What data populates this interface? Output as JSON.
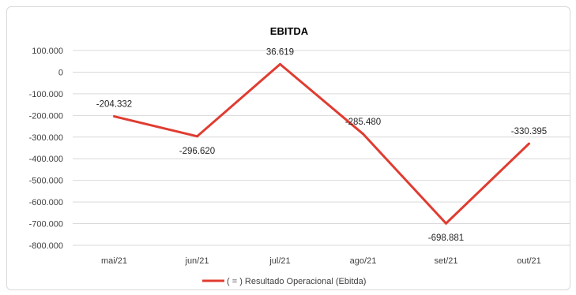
{
  "chart_data": {
    "type": "line",
    "title": "EBITDA",
    "xlabel": "",
    "ylabel": "",
    "categories": [
      "mai/21",
      "jun/21",
      "jul/21",
      "ago/21",
      "set/21",
      "out/21"
    ],
    "series": [
      {
        "name": "( = ) Resultado Operacional (Ebitda)",
        "values": [
          -204332,
          -296620,
          36619,
          -285480,
          -698881,
          -330395
        ],
        "labels": [
          "-204.332",
          "-296.620",
          "36.619",
          "-285.480",
          "-698.881",
          "-330.395"
        ],
        "color": "#e03c31"
      }
    ],
    "ylim": [
      -800000,
      100000
    ],
    "yticks": [
      100000,
      0,
      -100000,
      -200000,
      -300000,
      -400000,
      -500000,
      -600000,
      -700000,
      -800000
    ],
    "ytick_labels": [
      "100.000",
      "0",
      "-100.000",
      "-200.000",
      "-300.000",
      "-400.000",
      "-500.000",
      "-600.000",
      "-700.000",
      "-800.000"
    ],
    "grid": true,
    "legend": "bottom"
  }
}
